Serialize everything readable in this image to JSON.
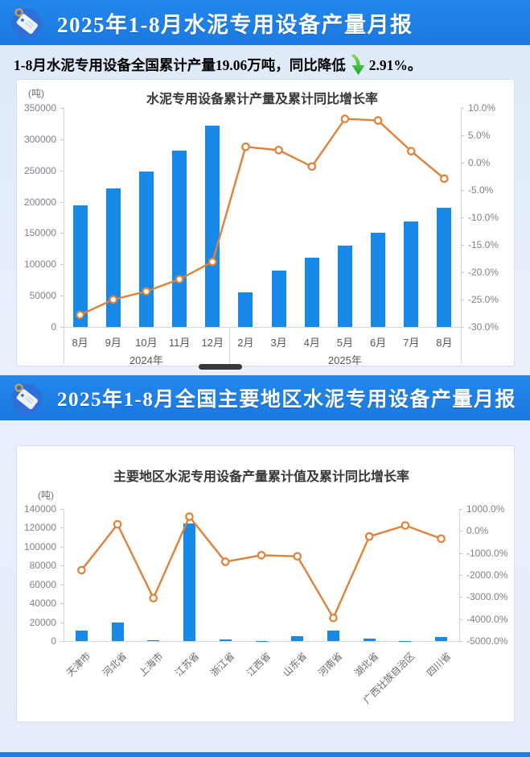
{
  "header1": {
    "title": "2025年1-8月水泥专用设备产量月报"
  },
  "header2": {
    "title": "2025年1-8月全国主要地区水泥专用设备产量月报"
  },
  "summary": {
    "prefix": "1-8月水泥专用设备全国累计产量19.06万吨，同比降低",
    "suffix": "2.91%。",
    "trend": "down"
  },
  "colors": {
    "header_bg": "#1d7ee3",
    "bar": "#1789e8",
    "line": "#e08138",
    "icon_circle": "#2f6fd8",
    "arrow_green": "#2fc13a"
  },
  "chart_data": [
    {
      "type": "bar+line",
      "title": "水泥专用设备累计产量及累计同比增长率",
      "unit_label": "(吨)",
      "categories": [
        "8月",
        "9月",
        "10月",
        "11月",
        "12月",
        "2月",
        "3月",
        "4月",
        "5月",
        "6月",
        "7月",
        "8月"
      ],
      "groups": [
        {
          "label": "2024年",
          "span": 5
        },
        {
          "label": "2025年",
          "span": 7
        }
      ],
      "series": [
        {
          "name": "累计产量",
          "type": "bar",
          "values": [
            195000,
            222000,
            249000,
            282000,
            322000,
            56000,
            90000,
            111000,
            130000,
            150000,
            168000,
            190600
          ]
        },
        {
          "name": "累计同比增长率",
          "type": "line",
          "values": [
            -27.8,
            -25.0,
            -23.5,
            -21.3,
            -18.1,
            2.9,
            2.3,
            -0.7,
            8.0,
            7.7,
            2.1,
            -2.91
          ]
        }
      ],
      "y_left": {
        "min": 0,
        "max": 350000,
        "step": 50000
      },
      "y_right": {
        "min": -30,
        "max": 10,
        "step": 5,
        "suffix": "%"
      },
      "legend": "none",
      "grid": "off"
    },
    {
      "type": "bar+line",
      "title": "主要地区水泥专用设备产量累计值及累计同比增长率",
      "unit_label": "(吨)",
      "categories": [
        "天津市",
        "河北省",
        "上海市",
        "江苏省",
        "浙江省",
        "江西省",
        "山东省",
        "河南省",
        "湖北省",
        "广西壮族自治区",
        "四川省"
      ],
      "rotate_x_labels": true,
      "series": [
        {
          "name": "产量累计值",
          "type": "bar",
          "values": [
            11000,
            20000,
            1200,
            125000,
            2000,
            400,
            5000,
            11500,
            2600,
            300,
            4000
          ]
        },
        {
          "name": "累计同比增长率",
          "type": "line",
          "values": [
            -1780,
            300,
            -3050,
            650,
            -1400,
            -1100,
            -1150,
            -3950,
            -250,
            250,
            -350
          ]
        }
      ],
      "y_left": {
        "min": 0,
        "max": 140000,
        "step": 20000
      },
      "y_right": {
        "min": -5000,
        "max": 1000,
        "step": 1000,
        "suffix": "%"
      },
      "legend": "none",
      "grid": "off"
    }
  ]
}
